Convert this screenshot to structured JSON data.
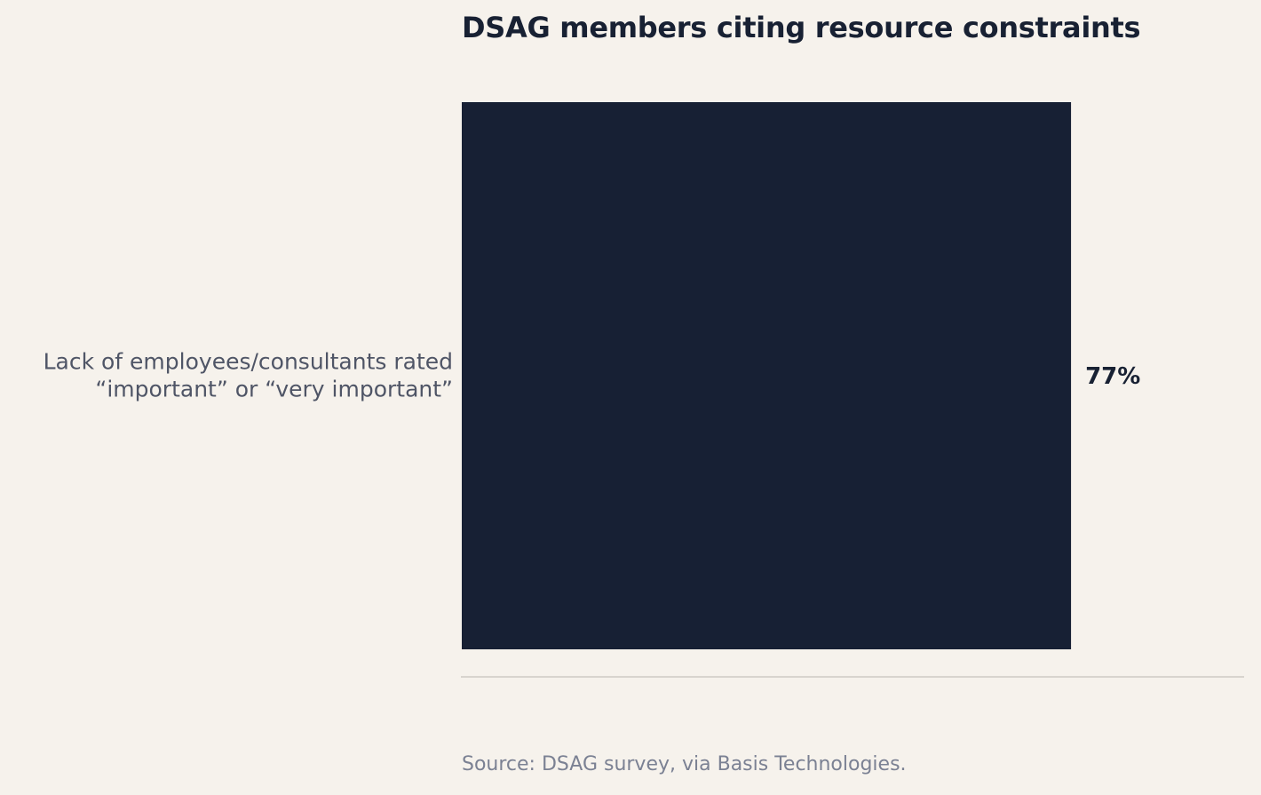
{
  "chart_data": {
    "type": "bar",
    "orientation": "horizontal",
    "title": "DSAG members citing resource constraints",
    "categories": [
      "Lack of employees/consultants rated “important” or “very important”"
    ],
    "category_label_lines": [
      [
        "Lack of employees/consultants rated",
        "“important” or “very important”"
      ]
    ],
    "values": [
      77
    ],
    "value_labels": [
      "77%"
    ],
    "xlim": [
      0,
      100
    ],
    "grid": false,
    "legend": "none",
    "colors": {
      "bar": "#172034",
      "baseline": "#d8d4ce",
      "background": "#f6f2ec"
    }
  },
  "source": "Source: DSAG survey, via Basis Technologies."
}
